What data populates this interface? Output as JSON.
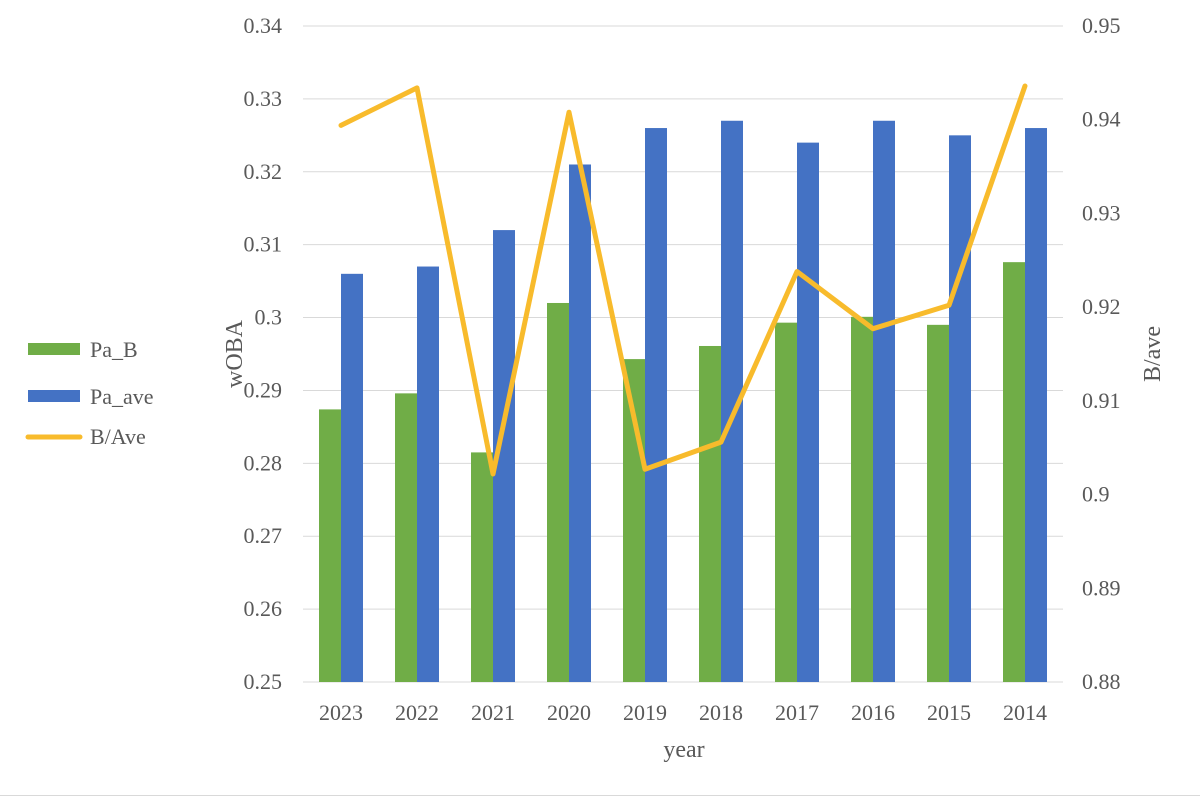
{
  "chart_data": {
    "type": "bar",
    "categories": [
      "2023",
      "2022",
      "2021",
      "2020",
      "2019",
      "2018",
      "2017",
      "2016",
      "2015",
      "2014"
    ],
    "series": [
      {
        "name": "Pa_B",
        "type": "bar",
        "axis": "left",
        "color": "#70ad47",
        "values": [
          0.2874,
          0.2896,
          0.2815,
          0.302,
          0.2943,
          0.2961,
          0.2993,
          0.3001,
          0.299,
          0.3076
        ]
      },
      {
        "name": "Pa_ave",
        "type": "bar",
        "axis": "left",
        "color": "#4472c4",
        "values": [
          0.306,
          0.307,
          0.312,
          0.321,
          0.326,
          0.327,
          0.324,
          0.327,
          0.325,
          0.326
        ]
      },
      {
        "name": "B/Ave",
        "type": "line",
        "axis": "right",
        "color": "#f8bb2c",
        "values": [
          0.9394,
          0.9434,
          0.9022,
          0.9408,
          0.9027,
          0.9056,
          0.9238,
          0.9177,
          0.9202,
          0.9436
        ]
      }
    ],
    "xlabel": "year",
    "ylabel": "wOBA",
    "y2label": "B/ave",
    "ylim": [
      0.25,
      0.34
    ],
    "y2lim": [
      0.88,
      0.95
    ],
    "yticks": [
      "0.25",
      "0.26",
      "0.27",
      "0.28",
      "0.29",
      "0.3",
      "0.31",
      "0.32",
      "0.33",
      "0.34"
    ],
    "y2ticks": [
      "0.88",
      "0.89",
      "0.9",
      "0.91",
      "0.92",
      "0.93",
      "0.94",
      "0.95"
    ],
    "grid": true,
    "legend_position": "left"
  }
}
